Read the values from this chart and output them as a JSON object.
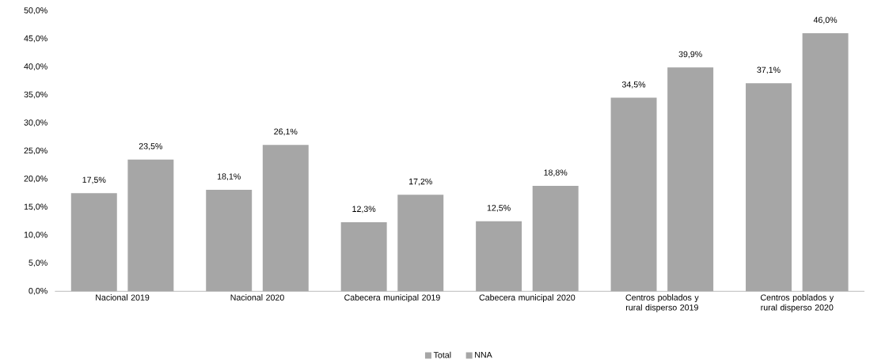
{
  "chart_data": {
    "type": "bar",
    "categories": [
      "Nacional 2019",
      "Nacional 2020",
      "Cabecera municipal 2019",
      "Cabecera municipal 2020",
      "Centros poblados y rural disperso 2019",
      "Centros poblados y rural disperso 2020"
    ],
    "series": [
      {
        "name": "Total",
        "color": "#a6a6a6",
        "values": [
          17.5,
          18.1,
          12.3,
          12.5,
          34.5,
          37.1
        ],
        "value_labels": [
          "17,5%",
          "18,1%",
          "12,3%",
          "12,5%",
          "34,5%",
          "37,1%"
        ]
      },
      {
        "name": "NNA",
        "color": "#a6a6a6",
        "values": [
          23.5,
          26.1,
          17.2,
          18.8,
          39.9,
          46.0
        ],
        "value_labels": [
          "23,5%",
          "26,1%",
          "17,2%",
          "18,8%",
          "39,9%",
          "46,0%"
        ]
      }
    ],
    "ylim": [
      0,
      50
    ],
    "yticks": [
      {
        "value": 0,
        "label": "0,0%"
      },
      {
        "value": 5,
        "label": "5,0%"
      },
      {
        "value": 10,
        "label": "10,0%"
      },
      {
        "value": 15,
        "label": "15,0%"
      },
      {
        "value": 20,
        "label": "20,0%"
      },
      {
        "value": 25,
        "label": "25,0%"
      },
      {
        "value": 30,
        "label": "30,0%"
      },
      {
        "value": 35,
        "label": "35,0%"
      },
      {
        "value": 40,
        "label": "40,0%"
      },
      {
        "value": 45,
        "label": "45,0%"
      },
      {
        "value": 50,
        "label": "50,0%"
      }
    ],
    "legend": "bottom"
  }
}
